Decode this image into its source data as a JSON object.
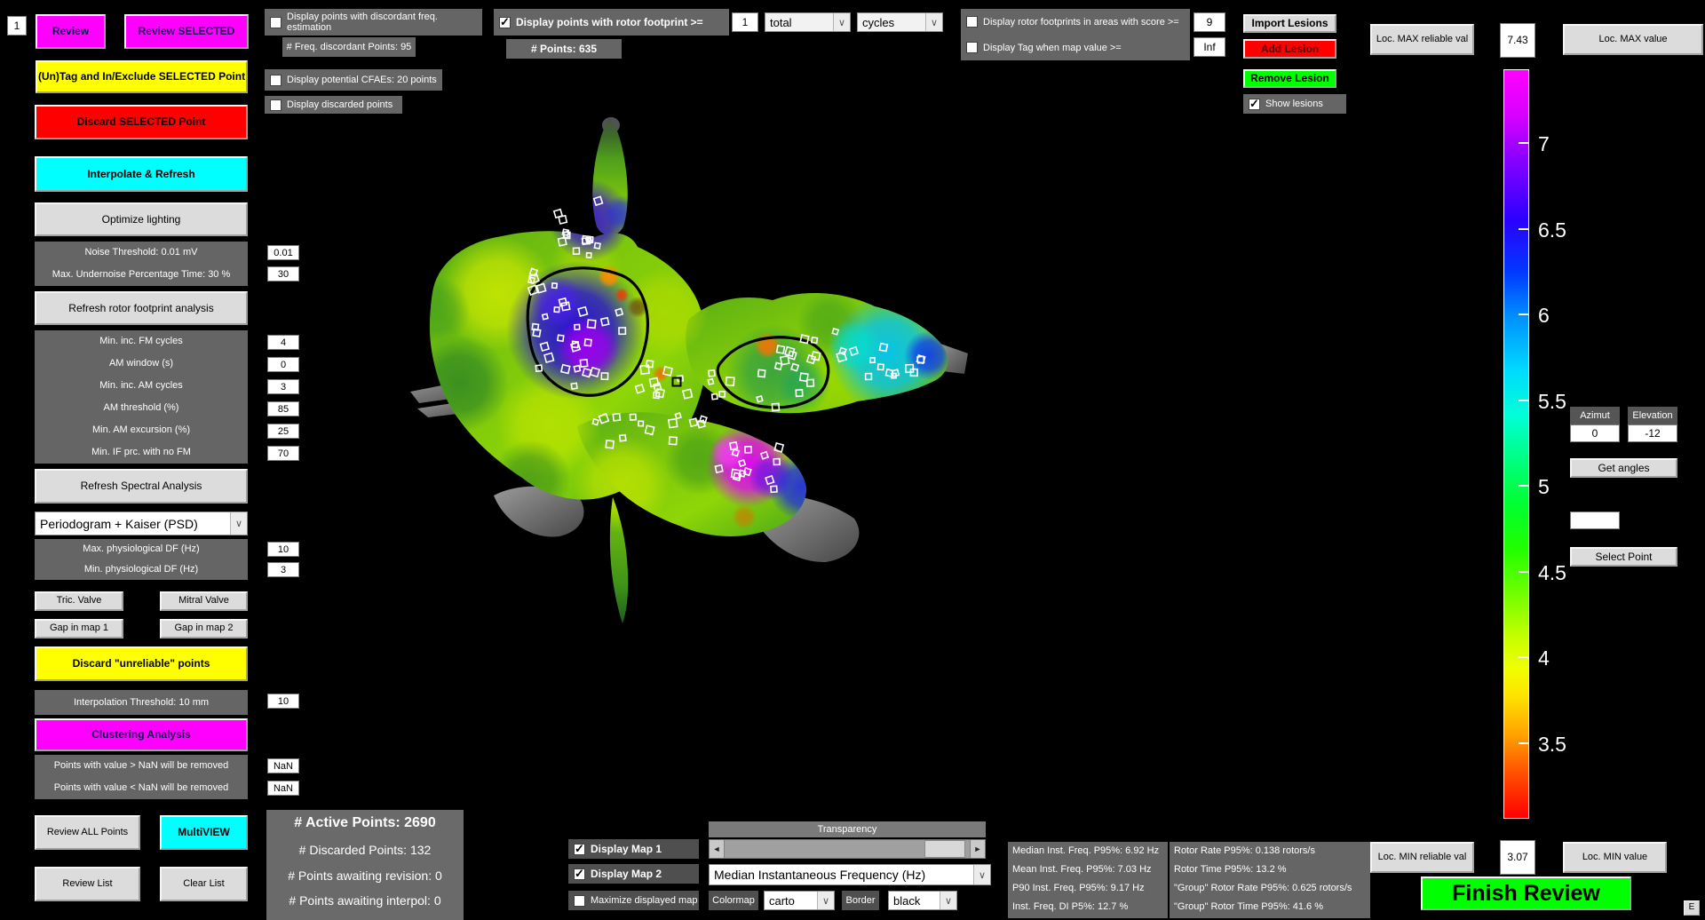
{
  "window": {
    "corner_badge": "1",
    "e_button": "E"
  },
  "left_toolbar": {
    "review": "Review",
    "review_selected": "Review SELECTED",
    "untag": "(Un)Tag and In/Exclude SELECTED Point",
    "discard_selected": "Discard SELECTED Point",
    "interpolate": "Interpolate & Refresh",
    "optimize_lighting": "Optimize lighting",
    "noise_threshold_label": "Noise Threshold: 0.01 mV",
    "noise_threshold_value": "0.01",
    "undernoise_label": "Max. Undernoise Percentage Time: 30 %",
    "undernoise_value": "30",
    "refresh_rotor": "Refresh rotor footprint analysis",
    "rotor_params": [
      {
        "label": "Min. inc. FM cycles",
        "value": "4"
      },
      {
        "label": "AM window (s)",
        "value": "0"
      },
      {
        "label": "Min. inc. AM cycles",
        "value": "3"
      },
      {
        "label": "AM threshold (%)",
        "value": "85"
      },
      {
        "label": "Min. AM excursion (%)",
        "value": "25"
      },
      {
        "label": "Min. IF prc. with no FM",
        "value": "70"
      }
    ],
    "refresh_spectral": "Refresh Spectral Analysis",
    "psd_select": "Periodogram + Kaiser (PSD)",
    "df_params": [
      {
        "label": "Max. physiological DF (Hz)",
        "value": "10"
      },
      {
        "label": "Min. physiological DF (Hz)",
        "value": "3"
      }
    ],
    "tric_valve": "Tric. Valve",
    "mitral_valve": "Mitral Valve",
    "gap1": "Gap in map 1",
    "gap2": "Gap in map 2",
    "discard_unreliable": "Discard \"unreliable\" points",
    "interp_threshold_label": "Interpolation Threshold: 10 mm",
    "interp_threshold_value": "10",
    "clustering": "Clustering Analysis",
    "remove_gt_label": "Points with value > NaN will be removed",
    "remove_gt_value": "NaN",
    "remove_lt_label": "Points with value < NaN will be removed",
    "remove_lt_value": "NaN",
    "review_all": "Review ALL Points",
    "multiview": "MultiVIEW",
    "review_list": "Review List",
    "clear_list": "Clear List"
  },
  "top_bar": {
    "discordant_checkbox": "Display points with discordant freq. estimation",
    "freq_discordant_count": "# Freq. discordant Points: 95",
    "cfae_checkbox": "Display potential CFAEs: 20 points",
    "discarded_checkbox": "Display discarded points",
    "rotor_checkbox": "Display points with rotor footprint >=",
    "rotor_value": "1",
    "rotor_count_type": "total",
    "rotor_unit": "cycles",
    "points_count": "# Points: 635",
    "score_checkbox": "Display rotor footprints in areas with score >=",
    "score_value": "9",
    "tag_checkbox": "Display Tag when map value >=",
    "tag_value": "Inf",
    "import_lesions": "Import Lesions",
    "add_lesion": "Add Lesion",
    "remove_lesion": "Remove Lesion",
    "show_lesions": "Show lesions"
  },
  "right_panel": {
    "loc_max_reliable": "Loc. MAX reliable val",
    "max_value": "7.43",
    "loc_max": "Loc. MAX value",
    "azimut_label": "Azimut",
    "azimut_value": "0",
    "elevation_label": "Elevation",
    "elevation_value": "-12",
    "get_angles": "Get angles",
    "select_point": "Select Point",
    "loc_min_reliable": "Loc. MIN reliable val",
    "min_value": "3.07",
    "loc_min": "Loc. MIN value"
  },
  "colorbar": {
    "max": 7.43,
    "min": 3.07,
    "ticks": [
      {
        "label": "7",
        "value": 7
      },
      {
        "label": "6.5",
        "value": 6.5
      },
      {
        "label": "6",
        "value": 6
      },
      {
        "label": "5.5",
        "value": 5.5
      },
      {
        "label": "5",
        "value": 5
      },
      {
        "label": "4.5",
        "value": 4.5
      },
      {
        "label": "4",
        "value": 4
      },
      {
        "label": "3.5",
        "value": 3.5
      }
    ]
  },
  "bottom_panel": {
    "active_points": "# Active Points: 2690",
    "discarded_points": "# Discarded Points: 132",
    "awaiting_revision": "# Points awaiting revision: 0",
    "awaiting_interpol": "# Points awaiting interpol: 0",
    "transparency": "Transparency",
    "display_map1": "Display Map 1",
    "display_map2": "Display Map 2",
    "map2_select": "Median Instantaneous Frequency (Hz)",
    "maximize": "Maximize displayed map",
    "colormap_label": "Colormap",
    "colormap_value": "carto",
    "border_label": "Border",
    "border_value": "black",
    "stats_left": [
      "Median Inst. Freq. P95%: 6.92 Hz",
      "Mean Inst. Freq. P95%: 7.03 Hz",
      "P90 Inst. Freq. P95%: 9.17 Hz",
      "Inst. Freq. DI P5%: 12.7 %"
    ],
    "stats_right": [
      "Rotor Rate P95%: 0.138 rotors/s",
      "Rotor Time P95%: 13.2 %",
      "\"Group\" Rotor Rate P95%: 0.625 rotors/s",
      "\"Group\" Rotor Time P95%: 41.6 %"
    ],
    "finish_review": "Finish Review"
  }
}
